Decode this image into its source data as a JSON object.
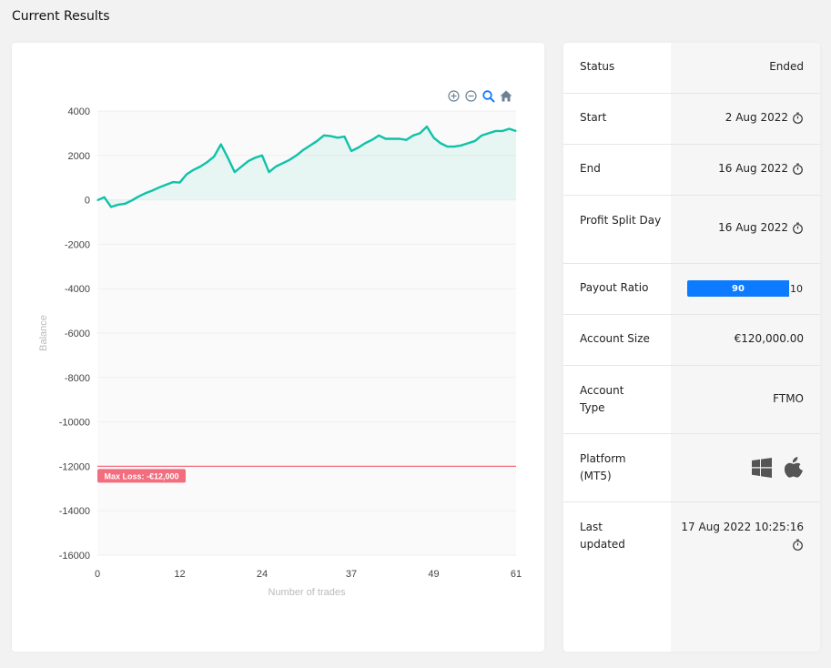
{
  "page": {
    "title": "Current Results"
  },
  "toolbar": {
    "zoom_in": "zoom-in-icon",
    "zoom_out": "zoom-out-icon",
    "zoom_select": "magnifier-icon",
    "reset": "home-icon"
  },
  "chart_data": {
    "type": "area",
    "xlabel": "Number of trades",
    "ylabel": "Balance",
    "xlim": [
      0,
      61
    ],
    "ylim": [
      -16000,
      4000
    ],
    "x_ticks": [
      0,
      12,
      24,
      37,
      49,
      61
    ],
    "y_ticks": [
      4000,
      2000,
      0,
      -2000,
      -4000,
      -6000,
      -8000,
      -10000,
      -12000,
      -14000,
      -16000
    ],
    "x": [
      0,
      1,
      2,
      3,
      4,
      5,
      6,
      7,
      8,
      9,
      10,
      11,
      12,
      13,
      14,
      15,
      16,
      17,
      18,
      19,
      20,
      21,
      22,
      23,
      24,
      25,
      26,
      27,
      28,
      29,
      30,
      31,
      32,
      33,
      34,
      35,
      36,
      37,
      38,
      39,
      40,
      41,
      42,
      43,
      44,
      45,
      46,
      47,
      48,
      49,
      50,
      51,
      52,
      53,
      54,
      55,
      56,
      57,
      58,
      59,
      60,
      61
    ],
    "values": [
      -20,
      120,
      -320,
      -220,
      -180,
      -30,
      150,
      300,
      420,
      560,
      680,
      800,
      780,
      1150,
      1350,
      1500,
      1700,
      1950,
      2500,
      1900,
      1250,
      1500,
      1750,
      1900,
      2000,
      1250,
      1500,
      1650,
      1800,
      2000,
      2250,
      2450,
      2650,
      2900,
      2870,
      2800,
      2850,
      2200,
      2350,
      2550,
      2700,
      2900,
      2750,
      2750,
      2750,
      2700,
      2900,
      3000,
      3300,
      2800,
      2550,
      2400,
      2400,
      2450,
      2550,
      2650,
      2900,
      3000,
      3100,
      3100,
      3200,
      3100
    ],
    "color": "#0fc2a8",
    "reference_line": {
      "value": -12000,
      "label": "Max Loss: -€12,000",
      "color": "#f26d7d"
    },
    "grid": true
  },
  "info": {
    "status": {
      "label": "Status",
      "value": "Ended"
    },
    "start": {
      "label": "Start",
      "value": "2 Aug 2022"
    },
    "end": {
      "label": "End",
      "value": "16 Aug 2022"
    },
    "profit_split": {
      "label": "Profit Split Day",
      "value": "16 Aug 2022"
    },
    "payout": {
      "label": "Payout Ratio",
      "trader": "90",
      "company": "10",
      "trader_fraction": 0.9
    },
    "account_size": {
      "label": "Account Size",
      "value": "€120,000.00"
    },
    "account_type": {
      "label": "Account Type",
      "value": "FTMO"
    },
    "platform": {
      "label": "Platform (MT5)",
      "icons": [
        "windows-icon",
        "apple-icon"
      ]
    },
    "last_updated": {
      "label": "Last updated",
      "value": "17 Aug 2022 10:25:16"
    }
  },
  "colors": {
    "accent": "#0d7bff",
    "line": "#0fc2a8",
    "max_loss": "#f26d7d"
  }
}
